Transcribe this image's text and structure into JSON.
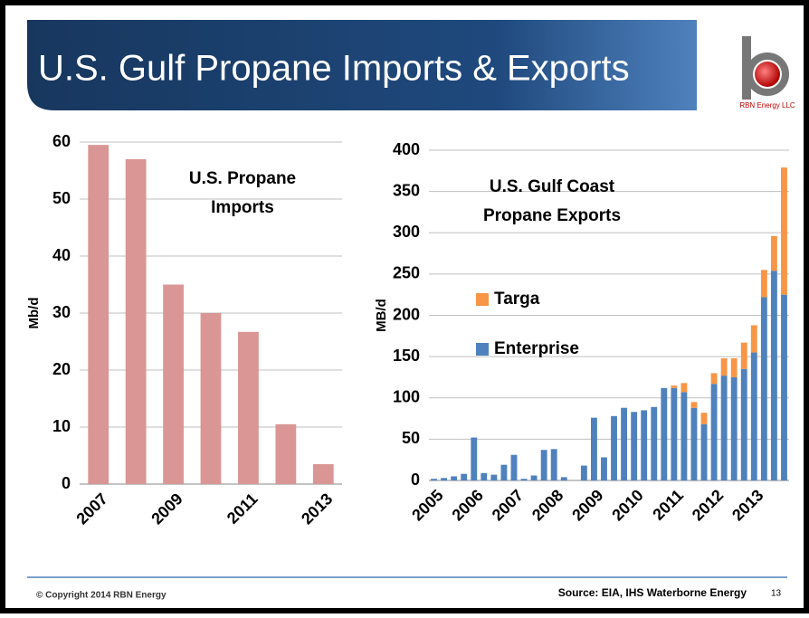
{
  "title": "U.S. Gulf Propane Imports & Exports",
  "logo": "RBN Energy LLC",
  "footer": {
    "copyright": "© Copyright 2014 RBN Energy",
    "source": "Source: EIA, IHS Waterborne Energy",
    "page": "13"
  },
  "chart_data": [
    {
      "type": "bar",
      "annotation": [
        "U.S. Propane",
        "Imports"
      ],
      "y_label": "Mb/d",
      "categories": [
        "2007",
        null,
        "2009",
        null,
        "2011",
        null,
        "2013"
      ],
      "values": [
        59.5,
        57,
        35,
        30,
        26.7,
        10.5,
        3.5
      ],
      "color": "#d99694",
      "ylim": [
        0,
        60
      ],
      "yticks": [
        0,
        10,
        20,
        30,
        40,
        50,
        60
      ],
      "grid": true
    },
    {
      "type": "stacked_bar",
      "annotation": [
        "U.S. Gulf Coast",
        "Propane Exports"
      ],
      "y_label": "MB/d",
      "categories": [
        "2005",
        null,
        null,
        null,
        "2006",
        null,
        null,
        null,
        "2007",
        null,
        null,
        null,
        "2008",
        null,
        null,
        null,
        "2009",
        null,
        null,
        null,
        "2010",
        null,
        null,
        null,
        "2011",
        null,
        null,
        null,
        "2012",
        null,
        null,
        null,
        "2013",
        null,
        null,
        null
      ],
      "series": [
        {
          "name": "Enterprise",
          "color": "#4f81bd",
          "values": [
            2,
            3,
            5,
            8,
            52,
            9,
            7,
            19,
            31,
            2,
            6,
            37,
            38,
            4,
            0,
            18,
            76,
            28,
            78,
            88,
            83,
            85,
            89,
            112,
            112,
            107,
            88,
            68,
            117,
            127,
            125,
            135,
            155,
            222,
            254,
            225
          ]
        },
        {
          "name": "Targa",
          "color": "#f79646",
          "values": [
            0,
            0,
            0,
            0,
            0,
            0,
            0,
            0,
            0,
            0,
            0,
            0,
            0,
            0,
            0,
            0,
            0,
            0,
            0,
            0,
            0,
            0,
            0,
            0,
            3,
            11,
            7,
            14,
            13,
            21,
            23,
            32,
            33,
            33,
            42,
            154
          ]
        }
      ],
      "legend": "left",
      "ylim": [
        0,
        400
      ],
      "yticks": [
        0,
        50,
        100,
        150,
        200,
        250,
        300,
        350,
        400
      ],
      "grid": true
    }
  ]
}
